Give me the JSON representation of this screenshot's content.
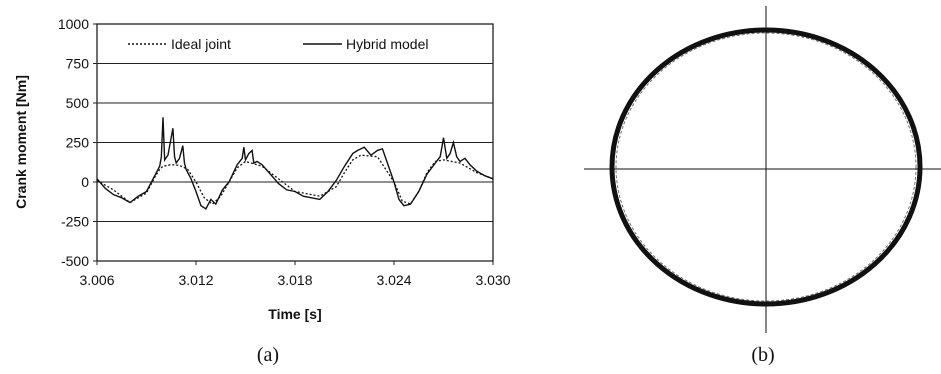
{
  "figure": {
    "label_a": "(a)",
    "label_b": "(b)"
  },
  "chart_data": [
    {
      "type": "line",
      "title": "",
      "xlabel": "Time [s]",
      "ylabel": "Crank moment [Nm]",
      "xlim": [
        3.006,
        3.03
      ],
      "ylim": [
        -500,
        1000
      ],
      "x_ticks": [
        "3.006",
        "3.012",
        "3.018",
        "3.024",
        "3.030"
      ],
      "y_ticks": [
        "-500",
        "-250",
        "0",
        "250",
        "500",
        "750",
        "1000"
      ],
      "grid": "horizontal",
      "legend_position": "top",
      "series": [
        {
          "name": "Ideal joint",
          "style": "dotted",
          "x": [
            3.006,
            3.007,
            3.008,
            3.009,
            3.0095,
            3.0098,
            3.01,
            3.0105,
            3.011,
            3.0115,
            3.012,
            3.0125,
            3.013,
            3.0135,
            3.014,
            3.0145,
            3.015,
            3.016,
            3.017,
            3.018,
            3.0195,
            3.0205,
            3.021,
            3.0215,
            3.022,
            3.023,
            3.024,
            3.0245,
            3.025,
            3.0255,
            3.026,
            3.0265,
            3.027,
            3.028,
            3.029,
            3.03
          ],
          "y": [
            10,
            -50,
            -130,
            -70,
            30,
            80,
            100,
            110,
            105,
            80,
            0,
            -100,
            -140,
            -90,
            0,
            90,
            130,
            100,
            20,
            -60,
            -90,
            -30,
            60,
            140,
            170,
            160,
            0,
            -120,
            -140,
            -60,
            60,
            130,
            140,
            120,
            60,
            20
          ]
        },
        {
          "name": "Hybrid model",
          "style": "solid",
          "x": [
            3.006,
            3.0065,
            3.007,
            3.0075,
            3.008,
            3.0085,
            3.009,
            3.0095,
            3.0098,
            3.0099,
            3.01,
            3.0101,
            3.0103,
            3.0106,
            3.0107,
            3.0108,
            3.011,
            3.0112,
            3.0113,
            3.0114,
            3.0117,
            3.012,
            3.0123,
            3.0126,
            3.0129,
            3.0132,
            3.0136,
            3.014,
            3.0145,
            3.0148,
            3.0149,
            3.015,
            3.0152,
            3.0154,
            3.0155,
            3.0157,
            3.016,
            3.0165,
            3.017,
            3.0175,
            3.018,
            3.0185,
            3.019,
            3.0195,
            3.02,
            3.0205,
            3.021,
            3.0215,
            3.0218,
            3.0222,
            3.0226,
            3.023,
            3.0233,
            3.0236,
            3.024,
            3.0243,
            3.0246,
            3.025,
            3.0255,
            3.026,
            3.0265,
            3.0268,
            3.027,
            3.0272,
            3.0274,
            3.0276,
            3.0278,
            3.028,
            3.0283,
            3.0286,
            3.029,
            3.0295,
            3.03
          ],
          "y": [
            20,
            -40,
            -80,
            -100,
            -130,
            -90,
            -60,
            40,
            100,
            160,
            410,
            140,
            170,
            340,
            160,
            120,
            150,
            230,
            120,
            80,
            20,
            -60,
            -150,
            -170,
            -110,
            -140,
            -50,
            0,
            110,
            150,
            220,
            140,
            180,
            200,
            120,
            130,
            110,
            50,
            -10,
            -50,
            -60,
            -90,
            -100,
            -110,
            -60,
            10,
            100,
            180,
            200,
            220,
            170,
            200,
            210,
            120,
            0,
            -110,
            -150,
            -140,
            -60,
            50,
            120,
            160,
            280,
            150,
            180,
            250,
            160,
            130,
            150,
            110,
            70,
            40,
            20
          ]
        }
      ]
    },
    {
      "type": "scatter",
      "title": "",
      "xlabel": "",
      "ylabel": "",
      "description_of_shape": "closed orbit",
      "grid": "none"
    }
  ]
}
